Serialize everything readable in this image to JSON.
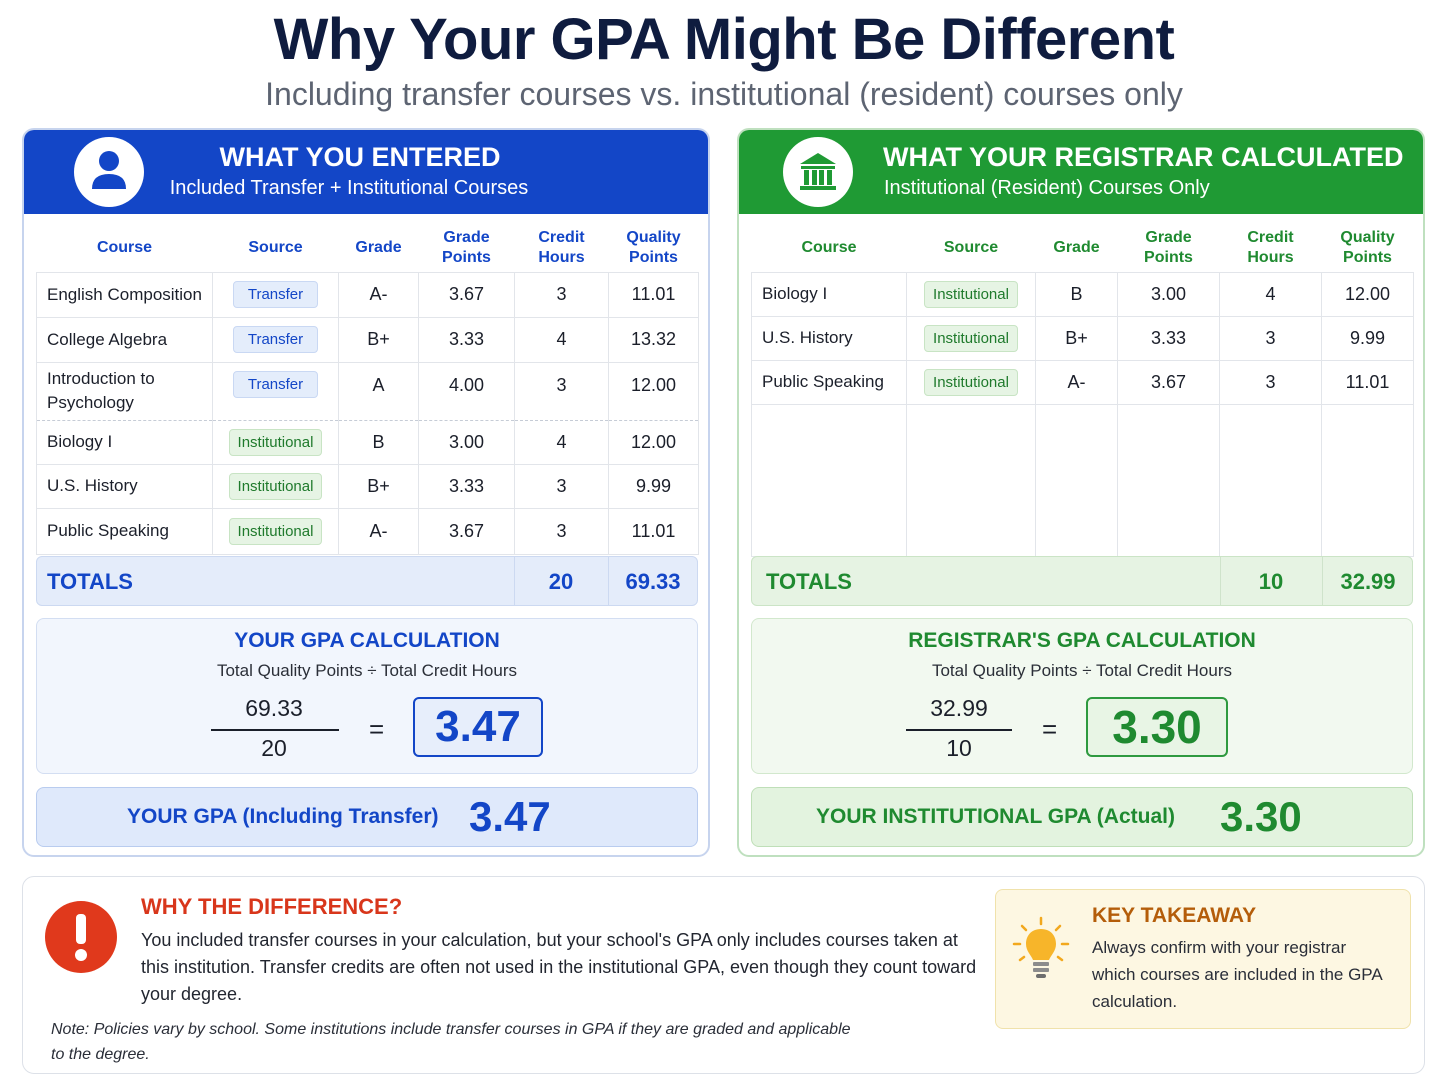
{
  "header": {
    "title": "Why Your GPA Might Be Different",
    "subtitle": "Including transfer courses vs. institutional (resident) courses only"
  },
  "columns": [
    "Course",
    "Source",
    "Grade",
    "Grade\nPoints",
    "Credit\nHours",
    "Quality\nPoints"
  ],
  "left": {
    "icon": "person-icon",
    "title": "WHAT YOU ENTERED",
    "subtitle": "Included Transfer + Institutional Courses",
    "rows": [
      {
        "course": "English Composition",
        "source": "Transfer",
        "grade": "A-",
        "grade_points": "3.67",
        "credit_hours": "3",
        "quality_points": "11.01"
      },
      {
        "course": "College Algebra",
        "source": "Transfer",
        "grade": "B+",
        "grade_points": "3.33",
        "credit_hours": "4",
        "quality_points": "13.32"
      },
      {
        "course": "Introduction to Psychology",
        "source": "Transfer",
        "grade": "A",
        "grade_points": "4.00",
        "credit_hours": "3",
        "quality_points": "12.00"
      },
      {
        "course": "Biology I",
        "source": "Institutional",
        "grade": "B",
        "grade_points": "3.00",
        "credit_hours": "4",
        "quality_points": "12.00"
      },
      {
        "course": "U.S. History",
        "source": "Institutional",
        "grade": "B+",
        "grade_points": "3.33",
        "credit_hours": "3",
        "quality_points": "9.99"
      },
      {
        "course": "Public Speaking",
        "source": "Institutional",
        "grade": "A-",
        "grade_points": "3.67",
        "credit_hours": "3",
        "quality_points": "11.01"
      }
    ],
    "totals": {
      "label": "TOTALS",
      "credit_hours": "20",
      "quality_points": "69.33"
    },
    "calc": {
      "title": "YOUR GPA CALCULATION",
      "formula": "Total Quality Points ÷ Total Credit Hours",
      "numerator": "69.33",
      "denominator": "20",
      "equals": "=",
      "result": "3.47"
    },
    "final": {
      "label": "YOUR GPA (Including Transfer)",
      "value": "3.47"
    },
    "colors": {
      "accent": "#1346c7"
    }
  },
  "right": {
    "icon": "bank-building-icon",
    "title": "WHAT YOUR REGISTRAR CALCULATED",
    "subtitle": "Institutional (Resident) Courses Only",
    "rows": [
      {
        "course": "Biology I",
        "source": "Institutional",
        "grade": "B",
        "grade_points": "3.00",
        "credit_hours": "4",
        "quality_points": "12.00"
      },
      {
        "course": "U.S. History",
        "source": "Institutional",
        "grade": "B+",
        "grade_points": "3.33",
        "credit_hours": "3",
        "quality_points": "9.99"
      },
      {
        "course": "Public Speaking",
        "source": "Institutional",
        "grade": "A-",
        "grade_points": "3.67",
        "credit_hours": "3",
        "quality_points": "11.01"
      }
    ],
    "totals": {
      "label": "TOTALS",
      "credit_hours": "10",
      "quality_points": "32.99"
    },
    "calc": {
      "title": "REGISTRAR'S GPA CALCULATION",
      "formula": "Total Quality Points ÷ Total Credit Hours",
      "numerator": "32.99",
      "denominator": "10",
      "equals": "=",
      "result": "3.30"
    },
    "final": {
      "label": "YOUR INSTITUTIONAL GPA (Actual)",
      "value": "3.30"
    },
    "colors": {
      "accent": "#1f9a34"
    }
  },
  "why": {
    "icon": "exclamation-icon",
    "title": "WHY THE DIFFERENCE?",
    "body": "You included transfer courses in your calculation, but your school's GPA only includes courses taken at this institution. Transfer credits are often not used in the institutional GPA, even though they count toward your degree.",
    "note": "Note: Policies vary by school. Some institutions include transfer courses in GPA if they are graded and applicable to the degree."
  },
  "key_takeaway": {
    "icon": "lightbulb-icon",
    "title": "KEY TAKEAWAY",
    "body": "Always confirm with your registrar which courses are included in the GPA calculation."
  }
}
